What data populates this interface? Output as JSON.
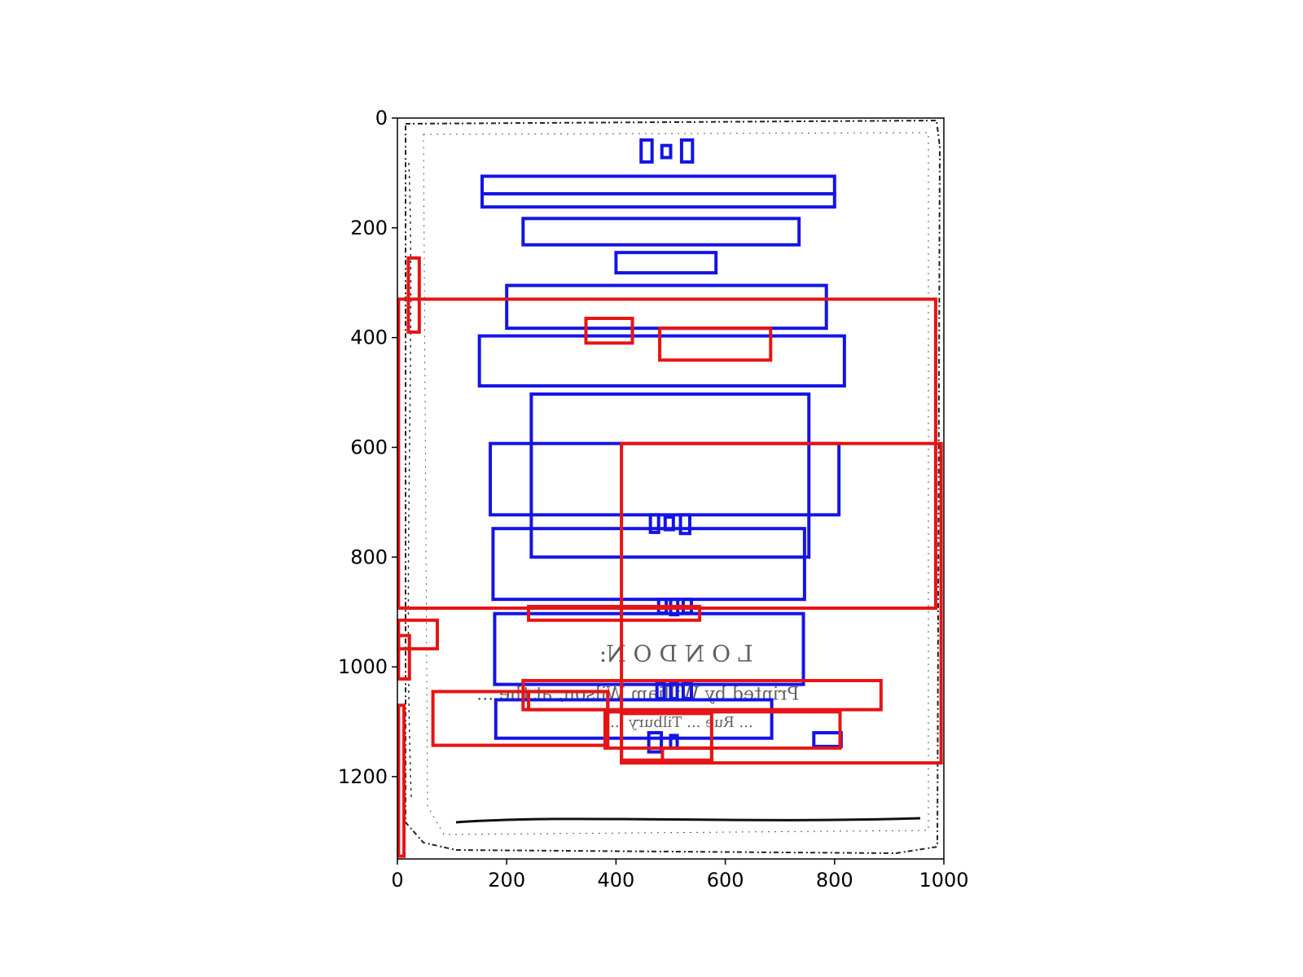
{
  "chart_data": {
    "type": "image-with-bounding-boxes",
    "xlim": [
      0,
      1000
    ],
    "ylim": [
      1350,
      0
    ],
    "y_inverted": true,
    "x_ticks": [
      "0",
      "200",
      "400",
      "600",
      "800",
      "1000"
    ],
    "y_ticks": [
      "0",
      "200",
      "400",
      "600",
      "800",
      "1000",
      "1200"
    ],
    "x_tick_values": [
      0,
      200,
      400,
      600,
      800,
      1000
    ],
    "y_tick_values": [
      0,
      200,
      400,
      600,
      800,
      1000,
      1200
    ],
    "grid": false,
    "colors": {
      "blue": "#1414e6",
      "red": "#e61414"
    },
    "scanned_text": [
      {
        "text": "L O N D O N:",
        "x": 510,
        "y": 990,
        "size": 28
      },
      {
        "text": "Printed by William Wilson, at the ...",
        "x": 440,
        "y": 1060,
        "size": 22
      },
      {
        "text": "... Rue ... Tilbury ...",
        "x": 520,
        "y": 1110,
        "size": 18
      }
    ],
    "blue_boxes": [
      [
        446,
        40,
        466,
        80
      ],
      [
        484,
        50,
        500,
        72
      ],
      [
        520,
        40,
        540,
        80
      ],
      [
        155,
        106,
        800,
        138
      ],
      [
        155,
        138,
        800,
        162
      ],
      [
        230,
        183,
        735,
        231
      ],
      [
        400,
        245,
        583,
        282
      ],
      [
        200,
        305,
        785,
        383
      ],
      [
        150,
        397,
        818,
        488
      ],
      [
        245,
        503,
        753,
        800
      ],
      [
        170,
        593,
        808,
        723
      ],
      [
        463,
        723,
        478,
        755
      ],
      [
        490,
        727,
        505,
        750
      ],
      [
        518,
        723,
        535,
        757
      ],
      [
        175,
        748,
        745,
        877
      ],
      [
        478,
        877,
        492,
        902
      ],
      [
        500,
        877,
        513,
        905
      ],
      [
        523,
        877,
        538,
        902
      ],
      [
        178,
        903,
        743,
        1032
      ],
      [
        475,
        1028,
        488,
        1058
      ],
      [
        500,
        1030,
        512,
        1058
      ],
      [
        523,
        1030,
        538,
        1058
      ],
      [
        180,
        1060,
        685,
        1130
      ],
      [
        460,
        1120,
        483,
        1155
      ],
      [
        500,
        1125,
        512,
        1148
      ],
      [
        762,
        1120,
        812,
        1145
      ]
    ],
    "red_boxes": [
      [
        20,
        255,
        40,
        390
      ],
      [
        2,
        330,
        985,
        893
      ],
      [
        345,
        365,
        430,
        410
      ],
      [
        480,
        383,
        683,
        441
      ],
      [
        410,
        593,
        995,
        1175
      ],
      [
        240,
        890,
        553,
        915
      ],
      [
        2,
        915,
        73,
        967
      ],
      [
        2,
        943,
        22,
        1022
      ],
      [
        230,
        1025,
        885,
        1078
      ],
      [
        240,
        1045,
        385,
        1078
      ],
      [
        65,
        1045,
        385,
        1143
      ],
      [
        380,
        1082,
        810,
        1148
      ],
      [
        410,
        1085,
        575,
        1170
      ],
      [
        485,
        1148,
        575,
        1173
      ],
      [
        2,
        1070,
        12,
        1345
      ]
    ]
  }
}
